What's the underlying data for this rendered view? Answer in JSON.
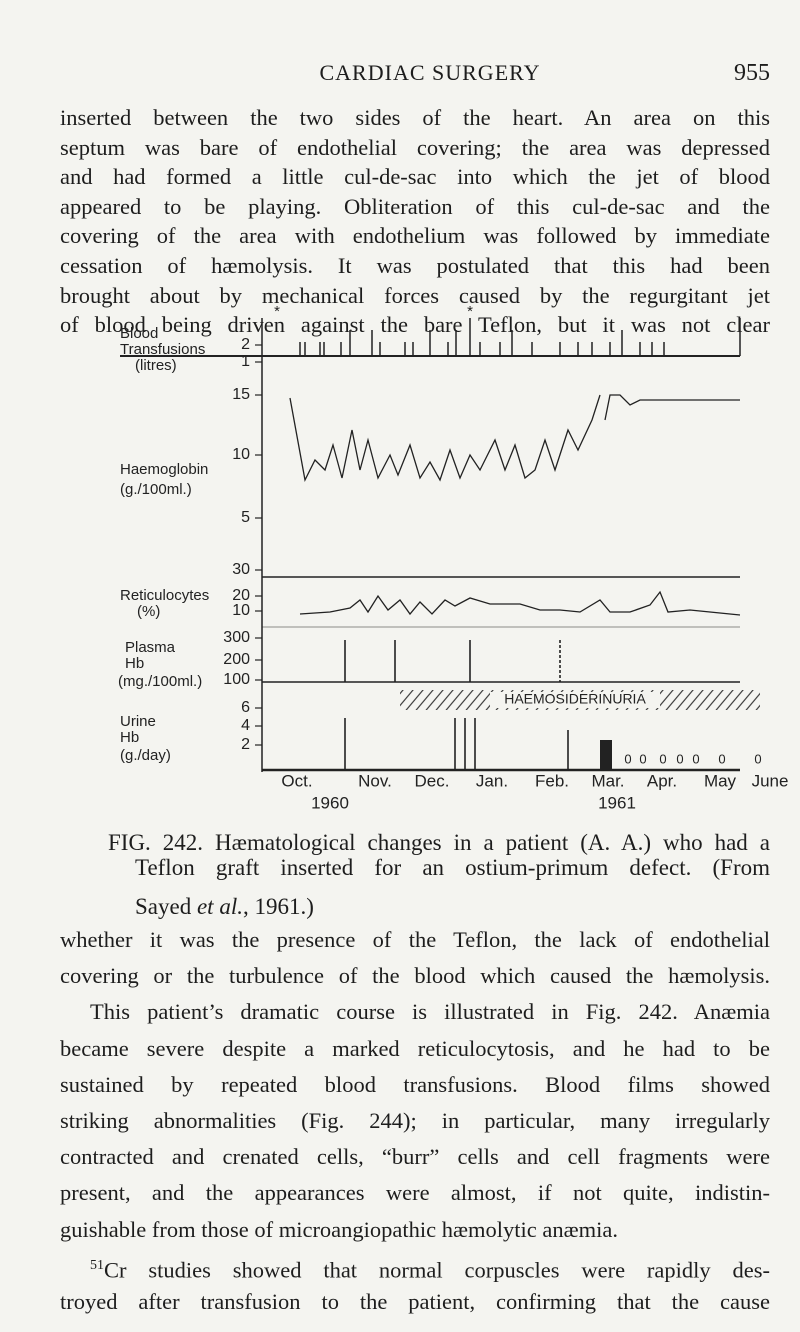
{
  "header": {
    "title": "CARDIAC SURGERY",
    "page_number": "955"
  },
  "paragraphs": [
    {
      "lines": [
        "inserted between the two sides of the heart. An area on this",
        "septum was bare of endothelial covering; the area was depressed",
        "and had formed a little cul-de-sac into which the jet of blood",
        "appeared to be playing. Obliteration of this cul-de-sac and the",
        "covering of the area with endothelium was followed by immediate",
        "cessation of hæmolysis. It was postulated that this had been",
        "brought about by mechanical forces caused by the regurgitant jet",
        "of blood being driven against the bare Teflon, but it was not clear"
      ]
    },
    {
      "lines": [
        "whether it was the presence of the Teflon, the lack of endothelial",
        "covering or the turbulence of the blood which caused the hæmolysis.",
        "This patient’s dramatic course is illustrated in Fig. 242. Anæmia",
        "became severe despite a marked reticulocytosis, and he had to be",
        "sustained by repeated blood transfusions. Blood films showed",
        "striking abnormalities (Fig. 244); in particular, many irregularly",
        "contracted and crenated cells, “burr” cells and cell fragments were",
        "present, and the appearances were almost, if not quite, indistin-",
        "guishable from those of microangiopathic hæmolytic anæmia.",
        {
          "superscript": "51",
          "text": "Cr studies showed that normal corpuscles were rapidly des-"
        },
        "troyed after transfusion to the patient, confirming that the cause"
      ]
    }
  ],
  "figure": {
    "markers": [
      "*",
      "*"
    ],
    "panels": [
      {
        "label": [
          "Blood",
          "Transfusions",
          "(litres)"
        ],
        "ticks": [
          "2",
          "1"
        ]
      },
      {
        "label": [
          "Haemoglobin",
          "(g./100ml.)"
        ],
        "ticks": [
          "15",
          "10",
          "5"
        ]
      },
      {
        "label": [
          "Reticulocytes",
          "(%)"
        ],
        "ticks": [
          "30",
          "20",
          "10"
        ]
      },
      {
        "label": [
          "Plasma",
          "Hb",
          "(mg./100ml.)"
        ],
        "ticks": [
          "300",
          "200",
          "100"
        ]
      },
      {
        "label": [
          "Urine",
          "Hb",
          "(g./day)"
        ],
        "ticks": [
          "6",
          "4",
          "2"
        ]
      }
    ],
    "band_label": "HAEMOSIDERINURIA",
    "zero_marks": [
      "0",
      "0",
      "0",
      "0",
      "0",
      "0",
      "0"
    ],
    "months": [
      "Oct.",
      "Nov.",
      "Dec.",
      "Jan.",
      "Feb.",
      "Mar.",
      "Apr.",
      "May",
      "June"
    ],
    "years": [
      "1960",
      "1961"
    ]
  },
  "caption": {
    "lines": [
      "FIG. 242. Hæmatological changes in a patient (A. A.) who had a",
      "Teflon graft inserted for an ostium-primum defect. (From"
    ],
    "last_line": [
      "Sayed ",
      "et al.",
      ", 1961.)"
    ]
  }
}
